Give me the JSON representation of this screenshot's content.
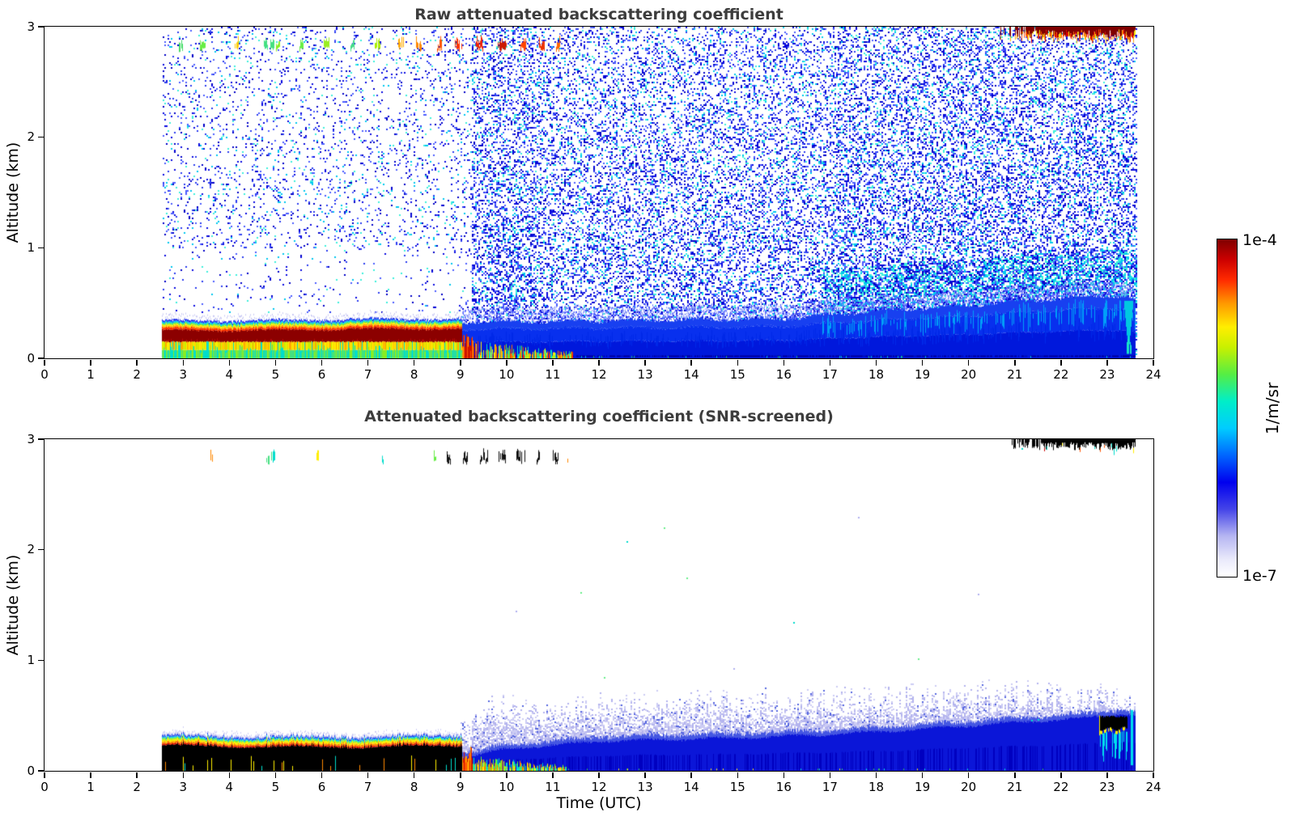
{
  "figure": {
    "background": "#ffffff",
    "axis_color": "#000000",
    "title_color": "#3d3d3d",
    "xlabel": "Time (UTC)",
    "colorbar": {
      "max_label": "1e-4",
      "min_label": "1e-7",
      "units": "1/m/sr"
    }
  },
  "colormap": {
    "stops": [
      [
        0,
        "#ffffff"
      ],
      [
        0.05,
        "#eaeafb"
      ],
      [
        0.12,
        "#b6b6f2"
      ],
      [
        0.2,
        "#4444e8"
      ],
      [
        0.28,
        "#0000ee"
      ],
      [
        0.36,
        "#0066ff"
      ],
      [
        0.44,
        "#00ccff"
      ],
      [
        0.52,
        "#00eec8"
      ],
      [
        0.6,
        "#55ee44"
      ],
      [
        0.68,
        "#c8f000"
      ],
      [
        0.74,
        "#ffee00"
      ],
      [
        0.81,
        "#ff9900"
      ],
      [
        0.88,
        "#ff2a00"
      ],
      [
        0.94,
        "#cc0000"
      ],
      [
        1,
        "#7f0000"
      ]
    ]
  },
  "chart_data": [
    {
      "type": "heatmap",
      "title": "Raw attenuated backscattering coefficient",
      "ylabel": "Altitude (km)",
      "xlim": [
        0,
        24
      ],
      "ylim": [
        0,
        3
      ],
      "xticks": [
        0,
        1,
        2,
        3,
        4,
        5,
        6,
        7,
        8,
        9,
        10,
        11,
        12,
        13,
        14,
        15,
        16,
        17,
        18,
        19,
        20,
        21,
        22,
        23,
        24
      ],
      "yticks": [
        0,
        1,
        2,
        3
      ],
      "value_min": "1e-7",
      "value_max": "1e-4",
      "data_time_range": [
        2.55,
        23.62
      ],
      "features": [
        {
          "kind": "noise",
          "t0": 2.55,
          "t1": 23.62,
          "sparse_end": 9.0,
          "d_sparse_hi": 0.1,
          "d_sparse_lo": 0.03,
          "d_dense": 0.3,
          "right_start": 17.0,
          "right_boost": 0.06,
          "stripe": [
            9.0,
            10.6
          ],
          "stripe_boost": 0.06,
          "gap": [
            8.98,
            9.22
          ],
          "blue_colors": [
            "#0a0ae0",
            "#2b3cf0",
            "#4b5cff",
            "#0000c8"
          ],
          "cyan_colors": [
            "#00c8f0",
            "#3cf0dc"
          ],
          "cyan_frac": 0.22,
          "wedge_t0": 16.8,
          "wedge_extra": 0.42,
          "wedge_boost": 0.3
        },
        {
          "kind": "blue_raw",
          "t0": 9.0,
          "t1": 23.62,
          "top_pts": [
            [
              9,
              0.33
            ],
            [
              12,
              0.34
            ],
            [
              16,
              0.36
            ],
            [
              18,
              0.43
            ],
            [
              20,
              0.48
            ],
            [
              21.5,
              0.53
            ],
            [
              23,
              0.57
            ],
            [
              23.45,
              0.56
            ],
            [
              23.62,
              0.5
            ]
          ],
          "colors": [
            "#0018dc",
            "#0830ee",
            "#1840f0"
          ],
          "cyan_streak": "#00a0f8",
          "dash_colors": [
            "#20c860",
            "#00ddcc"
          ],
          "cusp_t": 23.45,
          "cusp_color": "#00c8e0"
        },
        {
          "kind": "patches",
          "t0": 8.95,
          "t1": 11.45,
          "max_alt": 0.18,
          "burst_end": 9.3,
          "burst_colors": [
            "#cc1100",
            "#ff5500",
            "#ff9900"
          ],
          "colors": [
            "#ff7700",
            "#ffee00",
            "#00ddcc",
            "#66ee33",
            "#ff3300"
          ]
        },
        {
          "kind": "surface_raw",
          "t0": 2.55,
          "t1": 9.05,
          "core_bottom": 0.15,
          "core_top": 0.262,
          "core_color": "#8c0000",
          "core_hi": "#b40a0a",
          "under_lower": [
            "#00ddcc",
            "#44e080",
            "#88ee22"
          ],
          "under_upper": [
            "#ffee00",
            "#ffd400",
            "#ffaa00",
            "#c8f000"
          ],
          "above_colors": [
            "#ff3300",
            "#ffa500",
            "#ffee00",
            "#66ee33",
            "#00cfee",
            "#2233ee"
          ],
          "above_h": [
            0.018,
            0.013,
            0.013,
            0.012,
            0.014,
            0.016
          ],
          "lav": "#c8c8f4"
        },
        {
          "kind": "artifacts",
          "alt": 2.82,
          "blobs": [
            [
              2.95,
              "#44dd66",
              0.08
            ],
            [
              3.42,
              "#66ee44",
              0.1
            ],
            [
              4.15,
              "#ffcc00",
              0.08
            ],
            [
              4.85,
              "#44e080",
              0.22
            ],
            [
              5.05,
              "#88ee22",
              0.1
            ],
            [
              5.55,
              "#66ee44",
              0.08
            ],
            [
              6.1,
              "#99ee22",
              0.1
            ],
            [
              6.65,
              "#44dd88",
              0.08
            ],
            [
              7.2,
              "#aaee00",
              0.1
            ],
            [
              7.7,
              "#ffaa00",
              0.1
            ],
            [
              8.1,
              "#ff8800",
              0.1
            ],
            [
              8.55,
              "#ff5500",
              0.12
            ],
            [
              8.95,
              "#ff3300",
              0.14
            ],
            [
              9.4,
              "#ee2200",
              0.16
            ],
            [
              9.9,
              "#cc1a00",
              0.2
            ],
            [
              10.35,
              "#ff4400",
              0.12
            ],
            [
              10.75,
              "#ee3300",
              0.1
            ],
            [
              11.1,
              "#ff6600",
              0.08
            ]
          ]
        },
        {
          "kind": "top_band",
          "t0": 20.7,
          "t1": 23.62,
          "main": "#7f0000",
          "fringe": [
            "#dd0000",
            "#ff5500",
            "#ffaa00",
            "#ffee00"
          ],
          "fringe_p": 0.85
        }
      ]
    },
    {
      "type": "heatmap",
      "title": "Attenuated backscattering coefficient (SNR-screened)",
      "ylabel": "Altitude (km)",
      "xlim": [
        0,
        24
      ],
      "ylim": [
        0,
        3
      ],
      "xticks": [
        0,
        1,
        2,
        3,
        4,
        5,
        6,
        7,
        8,
        9,
        10,
        11,
        12,
        13,
        14,
        15,
        16,
        17,
        18,
        19,
        20,
        21,
        22,
        23,
        24
      ],
      "yticks": [
        0,
        1,
        2,
        3
      ],
      "value_min": "1e-7",
      "value_max": "1e-4",
      "data_time_range": [
        2.55,
        23.62
      ],
      "features": [
        {
          "kind": "screened_blue",
          "t0": 9.0,
          "t1": 23.62,
          "dark_pts": [
            [
              9,
              0.12
            ],
            [
              10,
              0.2
            ],
            [
              12,
              0.27
            ],
            [
              15,
              0.3
            ],
            [
              17,
              0.33
            ],
            [
              19,
              0.38
            ],
            [
              21,
              0.44
            ],
            [
              22.5,
              0.48
            ],
            [
              23.3,
              0.52
            ],
            [
              23.62,
              0.5
            ]
          ],
          "fuzz_pts": [
            [
              9.1,
              0.45
            ],
            [
              9.7,
              0.62
            ],
            [
              10.5,
              0.58
            ],
            [
              12,
              0.62
            ],
            [
              14,
              0.65
            ],
            [
              16,
              0.66
            ],
            [
              18,
              0.68
            ],
            [
              20,
              0.7
            ],
            [
              21.5,
              0.72
            ],
            [
              23,
              0.68
            ],
            [
              23.62,
              0.62
            ]
          ],
          "dark": "#0b16d8",
          "darker": "#0000c0",
          "mid": "#4456e2",
          "light": [
            "#b4b4ee",
            "#cdcdf4"
          ],
          "light_dark": "#5566e0",
          "dash_colors": [
            "#2fc24f",
            "#ffee00",
            "#00ddcc"
          ]
        },
        {
          "kind": "patches",
          "t0": 8.95,
          "t1": 11.3,
          "max_alt": 0.15,
          "burst_end": 9.25,
          "burst_colors": [
            "#cc1100",
            "#ff5500",
            "#ff9900"
          ],
          "colors": [
            "#ff7700",
            "#ffee00",
            "#00ddcc",
            "#66ee33"
          ]
        },
        {
          "kind": "surface_screened",
          "t0": 2.55,
          "t1": 9.05,
          "black": "#000000",
          "black_top": 0.225,
          "seq": [
            "#dd1100",
            "#ff8800",
            "#ffee00",
            "#88ee22",
            "#00ddee",
            "#2244ee",
            "#b8b8f0"
          ],
          "seq_h": [
            0.013,
            0.016,
            0.018,
            0.012,
            0.012,
            0.014,
            0.012
          ],
          "poke_colors": [
            "#ffee00",
            "#ff8800",
            "#00ddcc"
          ],
          "lav": "#d0d0f6"
        },
        {
          "kind": "cloud",
          "t0": 22.85,
          "t1": 23.45,
          "alt": [
            0.37,
            0.5
          ],
          "color": "#000000",
          "fringe": "#ffee00",
          "streak": "#00ddee"
        },
        {
          "kind": "artifacts",
          "alt": 2.82,
          "blobs": [
            [
              3.6,
              "#ff8800",
              0.05
            ],
            [
              4.85,
              "#44e080",
              0.12
            ],
            [
              4.95,
              "#00ddcc",
              0.06
            ],
            [
              5.9,
              "#ffee00",
              0.06
            ],
            [
              7.3,
              "#00ddcc",
              0.05
            ],
            [
              8.45,
              "#66ee44",
              0.06
            ],
            [
              8.75,
              "#111111",
              0.08
            ],
            [
              9.1,
              "#111111",
              0.12
            ],
            [
              9.5,
              "#111111",
              0.18
            ],
            [
              9.9,
              "#111111",
              0.14
            ],
            [
              10.3,
              "#111111",
              0.2
            ],
            [
              10.7,
              "#111111",
              0.12
            ],
            [
              11.05,
              "#111111",
              0.1
            ],
            [
              11.3,
              "#ff8800",
              0.05
            ]
          ]
        },
        {
          "kind": "top_band",
          "t0": 20.8,
          "t1": 23.62,
          "main": "#000000",
          "fringe": [
            "#ff5500",
            "#cc0000",
            "#00ddcc",
            "#ffee00"
          ],
          "fringe_p": 0.12
        },
        {
          "kind": "specks",
          "colors": [
            "#00ddcc",
            "#b0b0f0",
            "#66ee88"
          ],
          "pts": [
            [
              11.6,
              1.62
            ],
            [
              12.6,
              2.08
            ],
            [
              13.4,
              2.2
            ],
            [
              14.9,
              0.93
            ],
            [
              16.2,
              1.35
            ],
            [
              18.9,
              1.02
            ],
            [
              20.2,
              1.6
            ],
            [
              21.15,
              2.92
            ],
            [
              13.9,
              1.75
            ],
            [
              17.6,
              2.3
            ],
            [
              10.2,
              1.45
            ],
            [
              12.1,
              0.85
            ],
            [
              21.35,
              0.46
            ],
            [
              21.5,
              0.47
            ]
          ]
        }
      ]
    }
  ]
}
